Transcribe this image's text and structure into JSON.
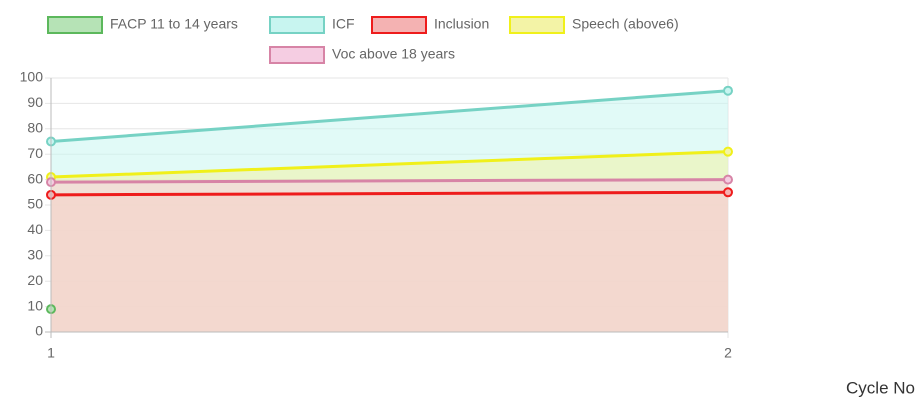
{
  "chart_data": {
    "type": "line",
    "x_label": "Cycle No",
    "categories": [
      "1",
      "2"
    ],
    "series": [
      {
        "name": "FACP 11 to 14 years",
        "color": "#5cb85c",
        "fill_color": "#b6e3b6",
        "values": [
          9,
          null
        ]
      },
      {
        "name": "ICF",
        "color": "#76d2c4",
        "fill_color": "#c8f5f0",
        "values": [
          75,
          95
        ]
      },
      {
        "name": "Inclusion",
        "color": "#ee1c1c",
        "fill_color": "#f4b2b2",
        "values": [
          54,
          55
        ]
      },
      {
        "name": "Speech (above6)",
        "color": "#f0f01a",
        "fill_color": "#f3f3a6",
        "values": [
          61,
          71
        ]
      },
      {
        "name": "Voc above 18 years",
        "color": "#d784a6",
        "fill_color": "#f5cde2",
        "values": [
          59,
          60
        ]
      }
    ],
    "ylim": [
      0,
      100
    ],
    "yticks": [
      0,
      10,
      20,
      30,
      40,
      50,
      60,
      70,
      80,
      90,
      100
    ],
    "grid": true,
    "legend": "top",
    "fill": true
  }
}
